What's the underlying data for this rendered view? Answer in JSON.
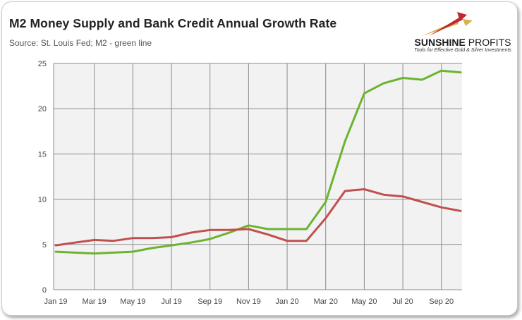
{
  "header": {
    "title": "M2 Money Supply and Bank Credit Annual Growth Rate",
    "subtitle": "Source: St. Louis Fed; M2 - green line"
  },
  "logo": {
    "name_bold": "SUNSHINE",
    "name_light": "PROFITS",
    "tagline": "Tools for Effective Gold & Silver Investments",
    "colors": {
      "red": "#c0282d",
      "gold": "#d8b24a"
    }
  },
  "chart_data": {
    "type": "line",
    "title": "M2 Money Supply and Bank Credit Annual Growth Rate",
    "x_tick_labels": [
      "Jan 19",
      "Mar 19",
      "May 19",
      "Jul 19",
      "Sep 19",
      "Nov 19",
      "Jan 20",
      "Mar 20",
      "May 20",
      "Jul 20",
      "Sep 20"
    ],
    "x": [
      "Jan 19",
      "Feb 19",
      "Mar 19",
      "Apr 19",
      "May 19",
      "Jun 19",
      "Jul 19",
      "Aug 19",
      "Sep 19",
      "Oct 19",
      "Nov 19",
      "Dec 19",
      "Jan 20",
      "Feb 20",
      "Mar 20",
      "Apr 20",
      "May 20",
      "Jun 20",
      "Jul 20",
      "Aug 20",
      "Sep 20",
      "Oct 20"
    ],
    "ylim": [
      0,
      25
    ],
    "y_ticks": [
      0,
      5,
      10,
      15,
      20,
      25
    ],
    "grid": true,
    "series": [
      {
        "name": "M2",
        "color": "#6bb42f",
        "values": [
          4.2,
          4.1,
          4.0,
          4.1,
          4.2,
          4.6,
          4.9,
          5.2,
          5.6,
          6.3,
          7.1,
          6.7,
          6.7,
          6.7,
          9.7,
          16.4,
          21.7,
          22.8,
          23.4,
          23.2,
          24.2,
          24.0
        ]
      },
      {
        "name": "Bank Credit",
        "color": "#c0504d",
        "values": [
          4.9,
          5.2,
          5.5,
          5.4,
          5.7,
          5.7,
          5.8,
          6.3,
          6.6,
          6.6,
          6.7,
          6.1,
          5.4,
          5.4,
          7.9,
          10.9,
          11.1,
          10.5,
          10.3,
          9.7,
          9.1,
          8.7
        ]
      }
    ]
  }
}
